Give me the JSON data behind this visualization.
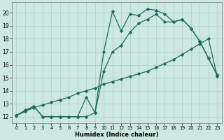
{
  "xlabel": "Humidex (Indice chaleur)",
  "background_color": "#cce8e0",
  "grid_color": "#aacfc8",
  "line_color": "#1a6b5a",
  "xlim": [
    -0.5,
    23.5
  ],
  "ylim": [
    11.5,
    20.8
  ],
  "xticks": [
    0,
    1,
    2,
    3,
    4,
    5,
    6,
    7,
    8,
    9,
    10,
    11,
    12,
    13,
    14,
    15,
    16,
    17,
    18,
    19,
    20,
    21,
    22,
    23
  ],
  "yticks": [
    12,
    13,
    14,
    15,
    16,
    17,
    18,
    19,
    20
  ],
  "line1_x": [
    0,
    1,
    2,
    3,
    4,
    5,
    6,
    7,
    8,
    9,
    10,
    11,
    12,
    13,
    14,
    15,
    16,
    17,
    18,
    19,
    20,
    21,
    22,
    23
  ],
  "line1_y": [
    12.1,
    12.4,
    12.7,
    12.9,
    13.1,
    13.3,
    13.5,
    13.8,
    14.0,
    14.2,
    14.5,
    14.7,
    14.9,
    15.1,
    15.3,
    15.5,
    15.8,
    16.1,
    16.4,
    16.8,
    17.2,
    17.6,
    18.0,
    15.1
  ],
  "line2_x": [
    0,
    1,
    2,
    3,
    4,
    5,
    6,
    7,
    8,
    9,
    10,
    11,
    12,
    13,
    14,
    15,
    16,
    17,
    18,
    19,
    20,
    21,
    22,
    23
  ],
  "line2_y": [
    12.1,
    12.5,
    12.8,
    12.0,
    12.0,
    12.0,
    12.0,
    12.0,
    12.0,
    12.3,
    15.5,
    17.0,
    17.5,
    18.5,
    19.2,
    19.5,
    19.9,
    19.3,
    19.3,
    19.5,
    18.8,
    17.8,
    16.5,
    15.2
  ],
  "line3_x": [
    0,
    2,
    3,
    4,
    5,
    6,
    7,
    8,
    9,
    10,
    11,
    12,
    13,
    14,
    15,
    16,
    17,
    18,
    19,
    20,
    21,
    22,
    23
  ],
  "line3_y": [
    12.1,
    12.8,
    12.0,
    12.0,
    12.0,
    12.0,
    12.0,
    13.5,
    12.3,
    17.0,
    20.1,
    18.6,
    19.9,
    19.8,
    20.3,
    20.2,
    19.9,
    19.3,
    19.5,
    18.8,
    17.8,
    16.5,
    15.2
  ]
}
